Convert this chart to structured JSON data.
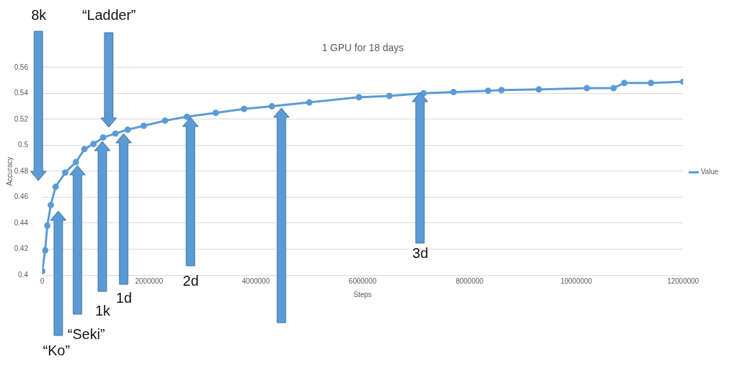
{
  "chart_data": {
    "type": "line",
    "title": "1 GPU for 18 days",
    "xlabel": "Steps",
    "ylabel": "Accuracy",
    "x": [
      0,
      54000,
      94000,
      160000,
      250000,
      430000,
      630000,
      790000,
      960000,
      1140000,
      1370000,
      1600000,
      1900000,
      2300000,
      2710000,
      3250000,
      3780000,
      4300000,
      5000000,
      5930000,
      6500000,
      7140000,
      7700000,
      8350000,
      8600000,
      9300000,
      10200000,
      10700000,
      10900000,
      11400000,
      12000000
    ],
    "series": [
      {
        "name": "Value",
        "color": "#5b9bd5",
        "values": [
          0.403,
          0.419,
          0.438,
          0.454,
          0.468,
          0.479,
          0.487,
          0.497,
          0.501,
          0.506,
          0.509,
          0.512,
          0.515,
          0.519,
          0.522,
          0.525,
          0.528,
          0.53,
          0.533,
          0.537,
          0.538,
          0.54,
          0.541,
          0.542,
          0.5425,
          0.543,
          0.544,
          0.544,
          0.548,
          0.548,
          0.549
        ]
      }
    ],
    "xlim": [
      0,
      12000000
    ],
    "xticks": [
      0,
      2000000,
      4000000,
      6000000,
      8000000,
      10000000,
      12000000
    ],
    "ylim": [
      0.4,
      0.56
    ],
    "yticks": [
      0.4,
      0.42,
      0.44,
      0.46,
      0.48,
      0.5,
      0.52,
      0.54,
      0.56
    ],
    "grid": "y",
    "legend": "right",
    "marker": "circle",
    "annotations": [
      "8k",
      "“Ladder”",
      "“Ko”",
      "“Seki”",
      "1k",
      "1d",
      "2d",
      "3d"
    ]
  }
}
